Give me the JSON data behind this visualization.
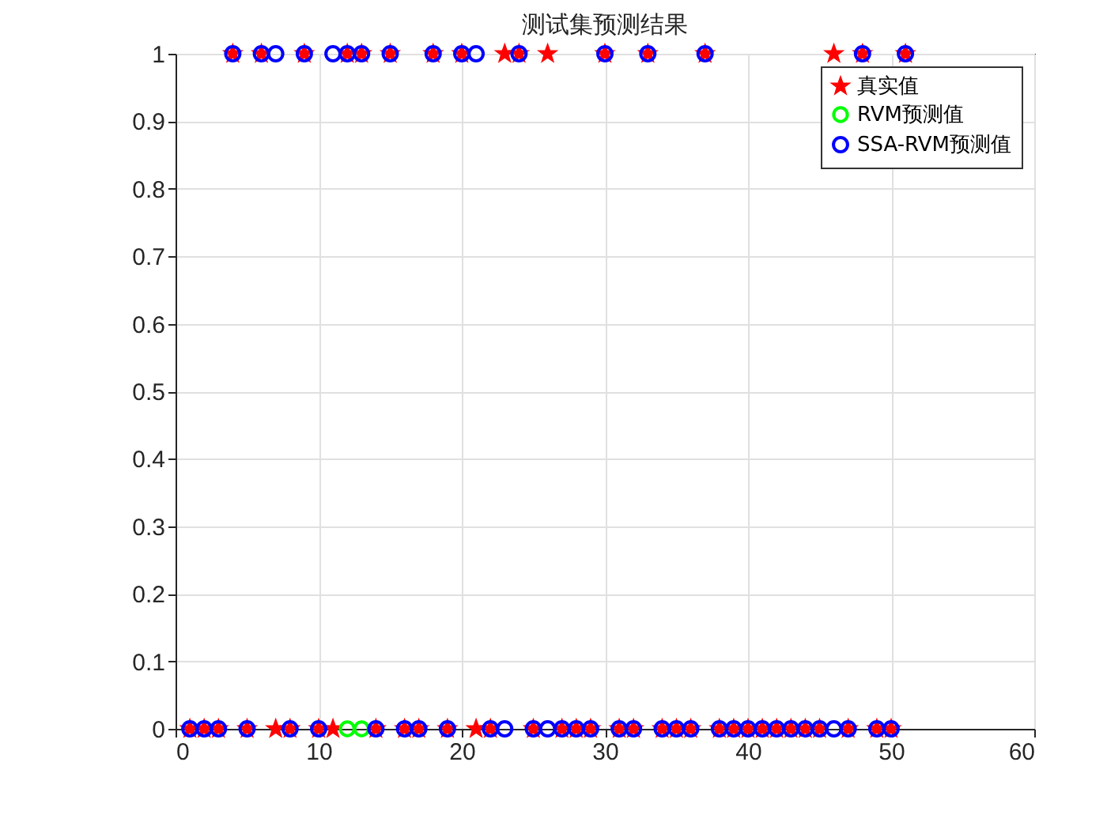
{
  "chart_data": {
    "type": "scatter",
    "title": "测试集预测结果",
    "x": [
      1,
      2,
      3,
      4,
      5,
      6,
      7,
      8,
      9,
      10,
      11,
      12,
      13,
      14,
      15,
      16,
      17,
      18,
      19,
      20,
      21,
      22,
      23,
      24,
      25,
      26,
      27,
      28,
      29,
      30,
      31,
      32,
      33,
      34,
      35,
      36,
      37,
      38,
      39,
      40,
      41,
      42,
      43,
      44,
      45,
      46,
      47,
      48,
      49,
      50,
      51
    ],
    "series": [
      {
        "name": "真实值",
        "color": "#ff0000",
        "marker": "star",
        "values": [
          0,
          0,
          0,
          1,
          0,
          1,
          0,
          0,
          1,
          0,
          0,
          1,
          1,
          0,
          1,
          0,
          0,
          1,
          0,
          1,
          0,
          0,
          1,
          1,
          0,
          1,
          0,
          0,
          0,
          1,
          0,
          0,
          1,
          0,
          0,
          0,
          1,
          0,
          0,
          0,
          0,
          0,
          0,
          0,
          0,
          1,
          0,
          1,
          0,
          0,
          1
        ]
      },
      {
        "name": "RVM预测值",
        "color": "#00ff00",
        "marker": "circle",
        "values": [
          null,
          null,
          null,
          null,
          null,
          null,
          null,
          null,
          null,
          null,
          null,
          0,
          0,
          null,
          null,
          null,
          null,
          null,
          null,
          null,
          null,
          null,
          null,
          null,
          null,
          null,
          null,
          null,
          null,
          null,
          null,
          null,
          null,
          null,
          null,
          null,
          null,
          null,
          null,
          null,
          null,
          null,
          null,
          null,
          null,
          null,
          null,
          null,
          null,
          null,
          null
        ]
      },
      {
        "name": "SSA-RVM预测值",
        "color": "#0000ff",
        "marker": "circle",
        "values": [
          0,
          0,
          0,
          1,
          0,
          1,
          1,
          0,
          1,
          0,
          1,
          1,
          1,
          0,
          1,
          0,
          0,
          1,
          0,
          1,
          1,
          0,
          0,
          1,
          0,
          0,
          0,
          0,
          0,
          1,
          0,
          0,
          1,
          0,
          0,
          0,
          1,
          0,
          0,
          0,
          0,
          0,
          0,
          0,
          0,
          0,
          0,
          1,
          0,
          0,
          1
        ]
      }
    ],
    "xlim": [
      0,
      60
    ],
    "xticks": [
      0,
      10,
      20,
      30,
      40,
      50,
      60
    ],
    "ylim": [
      0,
      1
    ],
    "yticks": [
      0,
      0.1,
      0.2,
      0.3,
      0.4,
      0.5,
      0.6,
      0.7,
      0.8,
      0.9,
      1
    ],
    "grid": true,
    "legend": "top right"
  }
}
